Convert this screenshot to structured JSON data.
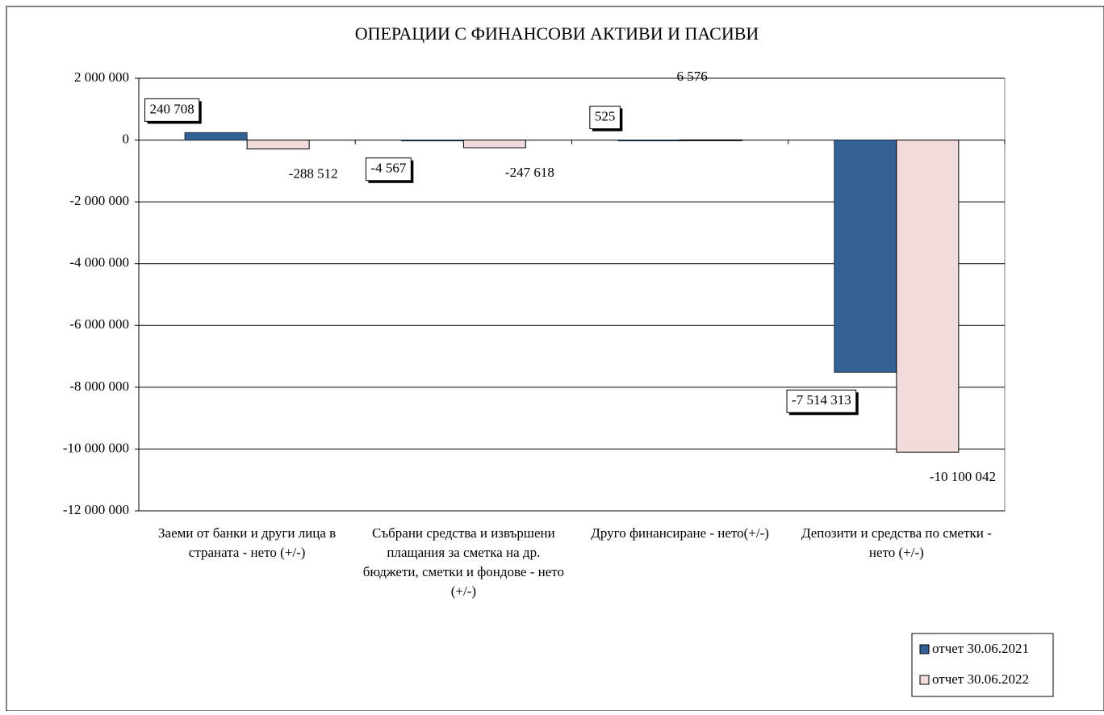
{
  "chart_data": {
    "type": "bar",
    "title": "ОПЕРАЦИИ С ФИНАНСОВИ АКТИВИ И ПАСИВИ",
    "categories": [
      "Заеми от банки и други лица в страната - нето (+/-)",
      "Събрани средства и извършени плащания за сметка на др. бюджети, сметки и фондове - нето (+/-)",
      "Друго финансиране - нето(+/-)",
      "Депозити и средства по сметки - нето (+/-)"
    ],
    "series": [
      {
        "name": "отчет 30.06.2021",
        "color": "#336196",
        "values": [
          240708,
          -4567,
          525,
          -7514313
        ],
        "value_labels": [
          "240 708",
          "-4 567",
          "525",
          "-7 514 313"
        ]
      },
      {
        "name": "отчет 30.06.2022",
        "color": "#f2dcdb",
        "values": [
          -288512,
          -247618,
          6576,
          -10100042
        ],
        "value_labels": [
          "-288 512",
          "-247 618",
          "6 576",
          "-10 100 042"
        ]
      }
    ],
    "ylim": [
      -12000000,
      2000000
    ],
    "yticks": [
      {
        "value": -12000000,
        "label": "-12 000 000"
      },
      {
        "value": -10000000,
        "label": "-10 000 000"
      },
      {
        "value": -8000000,
        "label": "-8 000 000"
      },
      {
        "value": -6000000,
        "label": "-6 000 000"
      },
      {
        "value": -4000000,
        "label": "-4 000 000"
      },
      {
        "value": -2000000,
        "label": "-2 000 000"
      },
      0,
      {
        "value": 2000000,
        "label": "2 000 000"
      }
    ],
    "grid": true,
    "legend": "bottom-right"
  }
}
